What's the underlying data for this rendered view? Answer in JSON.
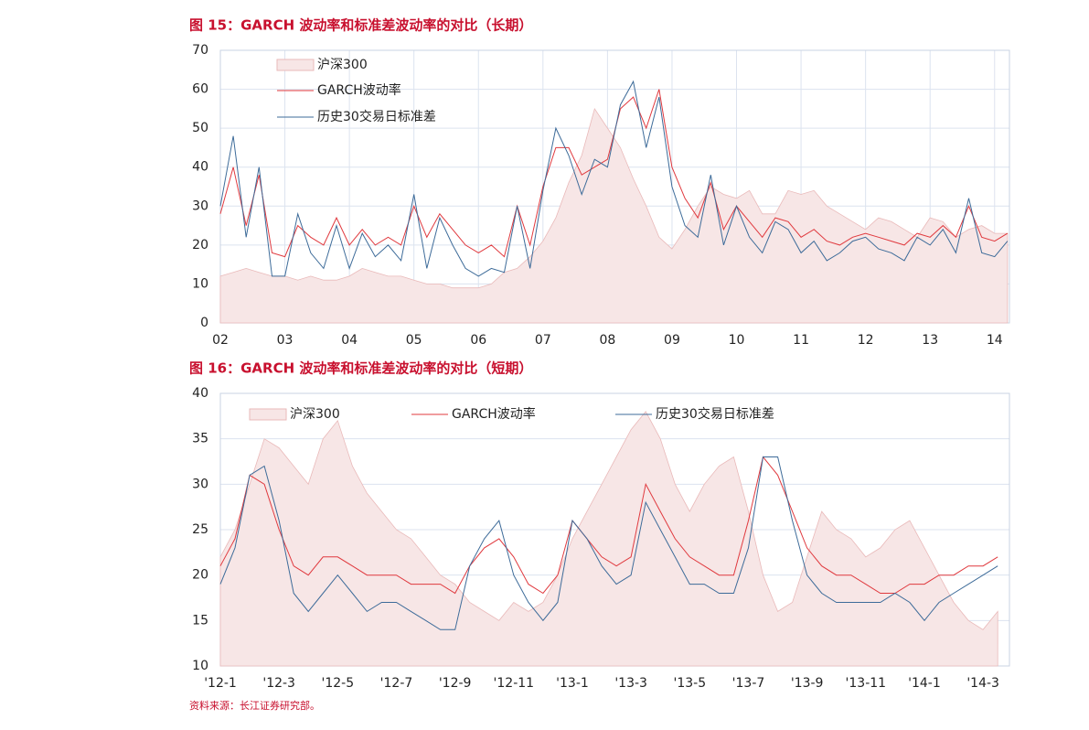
{
  "chart_data": [
    {
      "type": "line",
      "title": "图 15：GARCH 波动率和标准差波动率的对比（长期）",
      "x": [
        2.0,
        2.2,
        2.4,
        2.6,
        2.8,
        3.0,
        3.2,
        3.4,
        3.6,
        3.8,
        4.0,
        4.2,
        4.4,
        4.6,
        4.8,
        5.0,
        5.2,
        5.4,
        5.6,
        5.8,
        6.0,
        6.2,
        6.4,
        6.6,
        6.8,
        7.0,
        7.2,
        7.4,
        7.6,
        7.8,
        8.0,
        8.2,
        8.4,
        8.6,
        8.8,
        9.0,
        9.2,
        9.4,
        9.6,
        9.8,
        10.0,
        10.2,
        10.4,
        10.6,
        10.8,
        11.0,
        11.2,
        11.4,
        11.6,
        11.8,
        12.0,
        12.2,
        12.4,
        12.6,
        12.8,
        13.0,
        13.2,
        13.4,
        13.6,
        13.8,
        14.0,
        14.2
      ],
      "series": [
        {
          "name": "沪深300",
          "style": "area",
          "color": "#f7e6e6",
          "stroke": "#e9b9b9",
          "values": [
            12,
            13,
            14,
            13,
            12,
            12,
            11,
            12,
            11,
            11,
            12,
            14,
            13,
            12,
            12,
            11,
            10,
            10,
            9,
            9,
            9,
            10,
            13,
            14,
            17,
            21,
            27,
            36,
            43,
            55,
            50,
            45,
            37,
            30,
            22,
            19,
            24,
            30,
            35,
            33,
            32,
            34,
            28,
            28,
            34,
            33,
            34,
            30,
            28,
            26,
            24,
            27,
            26,
            24,
            22,
            27,
            26,
            22,
            24,
            25,
            23,
            23
          ]
        },
        {
          "name": "GARCH波动率",
          "style": "line",
          "color": "#e0393e",
          "values": [
            28,
            40,
            25,
            38,
            18,
            17,
            25,
            22,
            20,
            27,
            20,
            24,
            20,
            22,
            20,
            30,
            22,
            28,
            24,
            20,
            18,
            20,
            17,
            30,
            20,
            35,
            45,
            45,
            38,
            40,
            42,
            55,
            58,
            50,
            60,
            40,
            32,
            27,
            36,
            24,
            30,
            26,
            22,
            27,
            26,
            22,
            24,
            21,
            20,
            22,
            23,
            22,
            21,
            20,
            23,
            22,
            25,
            22,
            30,
            22,
            21,
            23
          ]
        },
        {
          "name": "历史30交易日标准差",
          "style": "line",
          "color": "#3d6b99",
          "values": [
            30,
            48,
            22,
            40,
            12,
            12,
            28,
            18,
            14,
            25,
            14,
            23,
            17,
            20,
            16,
            33,
            14,
            27,
            20,
            14,
            12,
            14,
            13,
            30,
            14,
            34,
            50,
            43,
            33,
            42,
            40,
            56,
            62,
            45,
            58,
            35,
            25,
            22,
            38,
            20,
            30,
            22,
            18,
            26,
            24,
            18,
            21,
            16,
            18,
            21,
            22,
            19,
            18,
            16,
            22,
            20,
            24,
            18,
            32,
            18,
            17,
            21
          ]
        }
      ],
      "xlim": [
        2,
        14.23
      ],
      "xticks": [
        {
          "value": 2,
          "label": "02"
        },
        {
          "value": 3,
          "label": "03"
        },
        {
          "value": 4,
          "label": "04"
        },
        {
          "value": 5,
          "label": "05"
        },
        {
          "value": 6,
          "label": "06"
        },
        {
          "value": 7,
          "label": "07"
        },
        {
          "value": 8,
          "label": "08"
        },
        {
          "value": 9,
          "label": "09"
        },
        {
          "value": 10,
          "label": "10"
        },
        {
          "value": 11,
          "label": "11"
        },
        {
          "value": 12,
          "label": "12"
        },
        {
          "value": 13,
          "label": "13"
        },
        {
          "value": 14,
          "label": "14"
        }
      ],
      "ylim": [
        0,
        70
      ],
      "yticks": [
        0,
        10,
        20,
        30,
        40,
        50,
        60,
        70
      ],
      "grid": "both",
      "legend": "upper-left",
      "legend_orientation": "vertical"
    },
    {
      "type": "line",
      "title": "图 16：GARCH 波动率和标准差波动率的对比（短期）",
      "x": [
        0,
        0.5,
        1,
        1.5,
        2,
        2.5,
        3,
        3.5,
        4,
        4.5,
        5,
        5.5,
        6,
        6.5,
        7,
        7.5,
        8,
        8.5,
        9,
        9.5,
        10,
        10.5,
        11,
        11.5,
        12,
        12.5,
        13,
        13.5,
        14,
        14.5,
        15,
        15.5,
        16,
        16.5,
        17,
        17.5,
        18,
        18.5,
        19,
        19.5,
        20,
        20.5,
        21,
        21.5,
        22,
        22.5,
        23,
        23.5,
        24,
        24.5,
        25,
        25.5,
        26,
        26.5
      ],
      "series": [
        {
          "name": "沪深300",
          "style": "area",
          "color": "#f7e6e6",
          "stroke": "#e9b9b9",
          "values": [
            22,
            25,
            30,
            35,
            34,
            32,
            30,
            35,
            37,
            32,
            29,
            27,
            25,
            24,
            22,
            20,
            19,
            17,
            16,
            15,
            17,
            16,
            17,
            20,
            24,
            27,
            30,
            33,
            36,
            38,
            35,
            30,
            27,
            30,
            32,
            33,
            27,
            20,
            16,
            17,
            22,
            27,
            25,
            24,
            22,
            23,
            25,
            26,
            23,
            20,
            17,
            15,
            14,
            16
          ]
        },
        {
          "name": "GARCH波动率",
          "style": "line",
          "color": "#e0393e",
          "values": [
            21,
            24,
            31,
            30,
            25,
            21,
            20,
            22,
            22,
            21,
            20,
            20,
            20,
            19,
            19,
            19,
            18,
            21,
            23,
            24,
            22,
            19,
            18,
            20,
            26,
            24,
            22,
            21,
            22,
            30,
            27,
            24,
            22,
            21,
            20,
            20,
            26,
            33,
            31,
            27,
            23,
            21,
            20,
            20,
            19,
            18,
            18,
            19,
            19,
            20,
            20,
            21,
            21,
            22
          ]
        },
        {
          "name": "历史30交易日标准差",
          "style": "line",
          "color": "#3d6b99",
          "values": [
            19,
            23,
            31,
            32,
            26,
            18,
            16,
            18,
            20,
            18,
            16,
            17,
            17,
            16,
            15,
            14,
            14,
            21,
            24,
            26,
            20,
            17,
            15,
            17,
            26,
            24,
            21,
            19,
            20,
            28,
            25,
            22,
            19,
            19,
            18,
            18,
            23,
            33,
            33,
            26,
            20,
            18,
            17,
            17,
            17,
            17,
            18,
            17,
            15,
            17,
            18,
            19,
            20,
            21
          ]
        }
      ],
      "xlim": [
        0,
        26.9
      ],
      "xticks": [
        {
          "value": 0,
          "label": "'12-1"
        },
        {
          "value": 2,
          "label": "'12-3"
        },
        {
          "value": 4,
          "label": "'12-5"
        },
        {
          "value": 6,
          "label": "'12-7"
        },
        {
          "value": 8,
          "label": "'12-9"
        },
        {
          "value": 10,
          "label": "'12-11"
        },
        {
          "value": 12,
          "label": "'13-1"
        },
        {
          "value": 14,
          "label": "'13-3"
        },
        {
          "value": 16,
          "label": "'13-5"
        },
        {
          "value": 18,
          "label": "'13-7"
        },
        {
          "value": 20,
          "label": "'13-9"
        },
        {
          "value": 22,
          "label": "'13-11"
        },
        {
          "value": 24,
          "label": "'14-1"
        },
        {
          "value": 26,
          "label": "'14-3"
        }
      ],
      "ylim": [
        10,
        40
      ],
      "yticks": [
        10,
        15,
        20,
        25,
        30,
        35,
        40
      ],
      "grid": "y",
      "legend": "upper-left",
      "legend_orientation": "horizontal"
    }
  ],
  "source": "资料来源：长江证券研究部。"
}
